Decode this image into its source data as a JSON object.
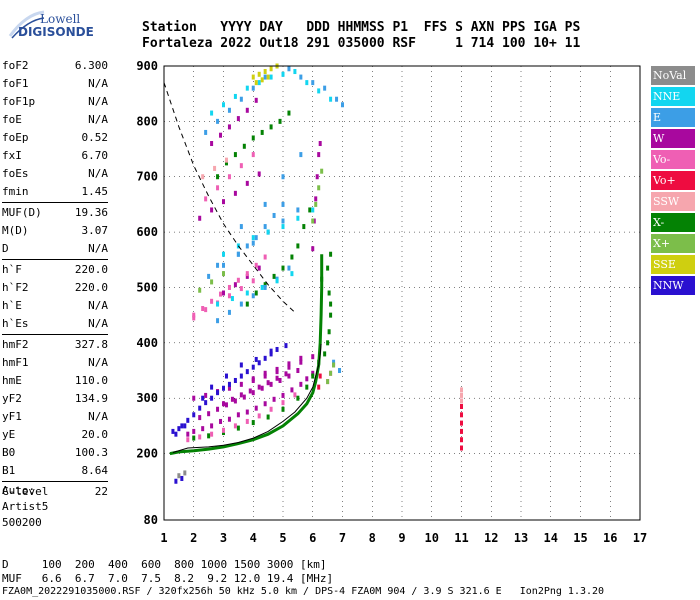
{
  "header": {
    "line1": "Station   YYYY DAY   DDD HHMMSS P1  FFS S AXN PPS IGA PS",
    "line2": "Fortaleza 2022 Out18 291 035000 RSF     1 714 100 10+ 11"
  },
  "logo": {
    "top": "Lowell",
    "bottom": "DIGISONDE"
  },
  "params": [
    {
      "k": "foF2",
      "v": "6.300"
    },
    {
      "k": "foF1",
      "v": "N/A"
    },
    {
      "k": "foF1p",
      "v": "N/A"
    },
    {
      "k": "foE",
      "v": "N/A"
    },
    {
      "k": "foEp",
      "v": "0.52"
    },
    {
      "k": "fxI",
      "v": "6.70"
    },
    {
      "k": "foEs",
      "v": "N/A"
    },
    {
      "k": "fmin",
      "v": "1.45"
    },
    {
      "k": "MUF(D)",
      "v": "19.36"
    },
    {
      "k": "M(D)",
      "v": "3.07"
    },
    {
      "k": "D",
      "v": "N/A"
    },
    {
      "k": "h`F",
      "v": "220.0"
    },
    {
      "k": "h`F2",
      "v": "220.0"
    },
    {
      "k": "h`E",
      "v": "N/A"
    },
    {
      "k": "h`Es",
      "v": "N/A"
    },
    {
      "k": "hmF2",
      "v": "327.8"
    },
    {
      "k": "hmF1",
      "v": "N/A"
    },
    {
      "k": "hmE",
      "v": "110.0"
    },
    {
      "k": "yF2",
      "v": "134.9"
    },
    {
      "k": "yF1",
      "v": "N/A"
    },
    {
      "k": "yE",
      "v": "20.0"
    },
    {
      "k": "B0",
      "v": "100.3"
    },
    {
      "k": "B1",
      "v": "8.64"
    },
    {
      "k": "C-level",
      "v": "22"
    }
  ],
  "artist": "Auto:\nArtist5\n500200",
  "legend": [
    {
      "label": "NoVal",
      "color": "#8c8c8c"
    },
    {
      "label": "NNE",
      "color": "#12d6f0"
    },
    {
      "label": "E",
      "color": "#3c9ee6"
    },
    {
      "label": "W",
      "color": "#a8089e"
    },
    {
      "label": "Vo-",
      "color": "#ef5fb4"
    },
    {
      "label": "Vo+",
      "color": "#ee0c40"
    },
    {
      "label": "SSW",
      "color": "#f6a6ae"
    },
    {
      "label": "X-",
      "color": "#048204"
    },
    {
      "label": "X+",
      "color": "#7cbe4a"
    },
    {
      "label": "SSE",
      "color": "#cfcf10"
    },
    {
      "label": "NNW",
      "color": "#2a10d0"
    }
  ],
  "muf_table": {
    "line1": "D     100  200  400  600  800 1000 1500 3000 [km]",
    "line2": "MUF   6.6  6.7  7.0  7.5  8.2  9.2 12.0 19.4 [MHz]"
  },
  "footer": "FZA0M_2022291035000.RSF / 320fx256h 50 kHz 5.0 km / DPS-4 FZA0M 904 / 3.9 S 321.6 E   Ion2Png 1.3.20",
  "chart_data": {
    "type": "scatter",
    "xlim": [
      1,
      17
    ],
    "ylim": [
      80,
      900
    ],
    "xticks": [
      1,
      2,
      3,
      4,
      5,
      6,
      7,
      8,
      9,
      10,
      11,
      12,
      13,
      14,
      15,
      16,
      17
    ],
    "yticks": [
      80,
      200,
      300,
      400,
      500,
      600,
      700,
      800,
      900
    ],
    "grid": true,
    "legend_position": "right",
    "profile_curve": {
      "x": [
        1.3,
        1.8,
        2.5,
        3.0,
        3.5,
        4.0,
        4.5,
        5.0,
        5.4,
        5.8,
        6.0,
        6.1,
        6.2,
        6.25,
        6.28
      ],
      "y": [
        202,
        210,
        212,
        215,
        220,
        228,
        240,
        258,
        275,
        300,
        320,
        340,
        360,
        380,
        398
      ]
    },
    "lower_trace": {
      "x": [
        1.2,
        1.5,
        2.0,
        2.5,
        3.0,
        3.5,
        4.0,
        4.5,
        5.0,
        5.5,
        5.8,
        6.0,
        6.1,
        6.2,
        6.25,
        6.28,
        6.3,
        6.3
      ],
      "y": [
        200,
        203,
        205,
        208,
        212,
        218,
        225,
        235,
        250,
        272,
        290,
        310,
        330,
        360,
        400,
        450,
        500,
        560
      ]
    },
    "dashed_curve": {
      "x": [
        1.0,
        1.5,
        2.0,
        2.5,
        3.0,
        3.5,
        4.0,
        4.5,
        5.0,
        5.4
      ],
      "y": [
        870,
        790,
        720,
        665,
        615,
        575,
        540,
        505,
        475,
        455
      ]
    },
    "series": [
      {
        "name": "W",
        "color": "#a8089e",
        "x": [
          1.8,
          2.0,
          2.3,
          2.6,
          2.9,
          3.2,
          3.5,
          3.8,
          4.1,
          4.4,
          4.7,
          5.0,
          5.3,
          5.6,
          5.8,
          6.0,
          2.2,
          2.5,
          2.8,
          3.1,
          3.4,
          3.7,
          4.0,
          4.3,
          4.6,
          4.9,
          5.2,
          5.5,
          3.0,
          3.3,
          3.6,
          3.9,
          4.2,
          4.5,
          4.8,
          5.1,
          4.0,
          4.4,
          4.8,
          5.2,
          5.6,
          2.0,
          2.4,
          2.8,
          3.2,
          3.6,
          4.0,
          4.4,
          4.8,
          5.2,
          5.6,
          6.0,
          2.2,
          2.6,
          3.0,
          3.4,
          3.8,
          4.2,
          2.6,
          2.9,
          3.2,
          3.5,
          3.8,
          4.1,
          3.0,
          3.4,
          3.8,
          4.2,
          6.0,
          6.05,
          6.1,
          6.15,
          6.2,
          6.25
        ],
        "y": [
          235,
          240,
          245,
          250,
          258,
          262,
          270,
          275,
          282,
          290,
          298,
          305,
          315,
          325,
          335,
          345,
          265,
          272,
          280,
          288,
          295,
          302,
          310,
          318,
          325,
          332,
          340,
          350,
          290,
          298,
          306,
          313,
          320,
          328,
          336,
          344,
          335,
          345,
          352,
          362,
          372,
          300,
          305,
          312,
          318,
          325,
          332,
          340,
          348,
          356,
          365,
          375,
          625,
          640,
          655,
          670,
          688,
          705,
          760,
          775,
          790,
          805,
          820,
          838,
          490,
          505,
          520,
          535,
          570,
          620,
          660,
          700,
          740,
          760
        ]
      },
      {
        "name": "X-",
        "color": "#048204",
        "x": [
          2.0,
          2.5,
          3.0,
          3.5,
          4.0,
          4.5,
          5.0,
          5.5,
          5.8,
          6.0,
          6.2,
          6.4,
          6.5,
          6.55,
          6.6,
          6.6,
          6.55,
          2.8,
          3.1,
          3.4,
          3.7,
          4.0,
          4.3,
          4.6,
          4.9,
          5.2,
          3.8,
          4.1,
          4.4,
          4.7,
          5.0,
          5.3,
          5.5,
          5.7,
          5.9,
          6.3,
          6.5,
          6.6
        ],
        "y": [
          228,
          232,
          238,
          246,
          256,
          266,
          280,
          300,
          320,
          340,
          365,
          380,
          400,
          420,
          450,
          470,
          490,
          700,
          725,
          740,
          755,
          770,
          780,
          790,
          800,
          815,
          470,
          490,
          505,
          520,
          535,
          555,
          575,
          610,
          640,
          515,
          535,
          560
        ]
      },
      {
        "name": "Vo-",
        "color": "#ef5fb4",
        "x": [
          1.8,
          2.2,
          2.6,
          3.0,
          3.4,
          3.8,
          4.2,
          4.6,
          5.0,
          5.4,
          2.0,
          2.4,
          2.8,
          3.2,
          3.6,
          4.0,
          2.4,
          2.8,
          3.2,
          3.6,
          4.0,
          2.0,
          2.3,
          2.6,
          2.9,
          3.2,
          3.5,
          3.8,
          4.1,
          4.4,
          6.5,
          6.6,
          6.7
        ],
        "y": [
          225,
          230,
          235,
          242,
          250,
          258,
          268,
          280,
          292,
          306,
          445,
          460,
          472,
          485,
          498,
          512,
          660,
          680,
          700,
          720,
          740,
          450,
          462,
          475,
          488,
          500,
          513,
          525,
          540,
          555,
          330,
          345,
          360
        ]
      },
      {
        "name": "E",
        "color": "#3c9ee6",
        "x": [
          2.4,
          2.8,
          3.2,
          3.6,
          4.0,
          4.4,
          4.8,
          5.2,
          5.6,
          6.0,
          6.4,
          6.8,
          7.0,
          6.7,
          6.9,
          2.5,
          3.0,
          3.5,
          4.0,
          4.5,
          5.0,
          5.5,
          3.5,
          3.8,
          4.1,
          4.4,
          4.7,
          5.0,
          2.8,
          3.2,
          3.6,
          4.0,
          4.4,
          4.8,
          5.2,
          2.8,
          3.6,
          4.4,
          5.0,
          5.6
        ],
        "y": [
          780,
          800,
          820,
          840,
          860,
          880,
          900,
          895,
          880,
          870,
          860,
          840,
          830,
          365,
          350,
          520,
          540,
          560,
          580,
          600,
          620,
          640,
          560,
          575,
          590,
          610,
          630,
          650,
          440,
          455,
          470,
          485,
          500,
          515,
          535,
          540,
          610,
          650,
          700,
          740
        ]
      },
      {
        "name": "NNE",
        "color": "#12d6f0",
        "x": [
          2.6,
          3.0,
          3.4,
          3.8,
          4.2,
          4.6,
          5.0,
          5.4,
          5.8,
          6.2,
          6.6,
          3.0,
          3.5,
          4.0,
          4.5,
          5.0,
          5.5,
          6.0,
          2.8,
          3.3,
          3.8,
          4.3,
          4.8,
          5.3
        ],
        "y": [
          815,
          830,
          845,
          860,
          870,
          880,
          885,
          890,
          870,
          855,
          840,
          560,
          575,
          590,
          600,
          610,
          625,
          640,
          470,
          480,
          490,
          500,
          512,
          525
        ]
      },
      {
        "name": "NNW",
        "color": "#2a10d0",
        "x": [
          1.4,
          1.6,
          1.8,
          2.0,
          2.2,
          2.4,
          2.6,
          2.8,
          3.0,
          3.2,
          3.4,
          3.6,
          3.8,
          4.0,
          4.2,
          4.4,
          4.6,
          4.8,
          1.3,
          1.5,
          1.7,
          2.3,
          2.6,
          3.1,
          3.6,
          4.1,
          4.6,
          5.1,
          1.4,
          1.6
        ],
        "y": [
          235,
          250,
          260,
          270,
          282,
          292,
          300,
          310,
          318,
          325,
          332,
          340,
          348,
          356,
          364,
          372,
          380,
          388,
          240,
          245,
          250,
          300,
          320,
          340,
          360,
          370,
          385,
          395,
          150,
          155
        ]
      },
      {
        "name": "SSE",
        "color": "#cfcf10",
        "x": [
          4.0,
          4.2,
          4.4,
          4.6,
          4.8,
          4.1,
          4.3,
          4.5
        ],
        "y": [
          880,
          885,
          890,
          895,
          900,
          870,
          875,
          880
        ]
      },
      {
        "name": "X+",
        "color": "#7cbe4a",
        "x": [
          6.0,
          6.1,
          6.2,
          6.3,
          6.5,
          6.6,
          6.7,
          2.2,
          2.6,
          3.0
        ],
        "y": [
          620,
          650,
          680,
          710,
          330,
          345,
          360,
          495,
          510,
          525
        ]
      },
      {
        "name": "Vo+",
        "color": "#ee0c40",
        "x": [
          11.0,
          11.0,
          11.0,
          11.0,
          11.0,
          11.0,
          6.2,
          6.25
        ],
        "y": [
          210,
          225,
          240,
          255,
          270,
          285,
          320,
          340
        ]
      },
      {
        "name": "SSW",
        "color": "#f6a6ae",
        "x": [
          11.0,
          11.0,
          11.0,
          2.3,
          2.7,
          3.1
        ],
        "y": [
          295,
          305,
          315,
          700,
          715,
          730
        ]
      },
      {
        "name": "NoVal",
        "color": "#8c8c8c",
        "x": [
          1.5,
          1.7
        ],
        "y": [
          160,
          165
        ]
      }
    ]
  }
}
